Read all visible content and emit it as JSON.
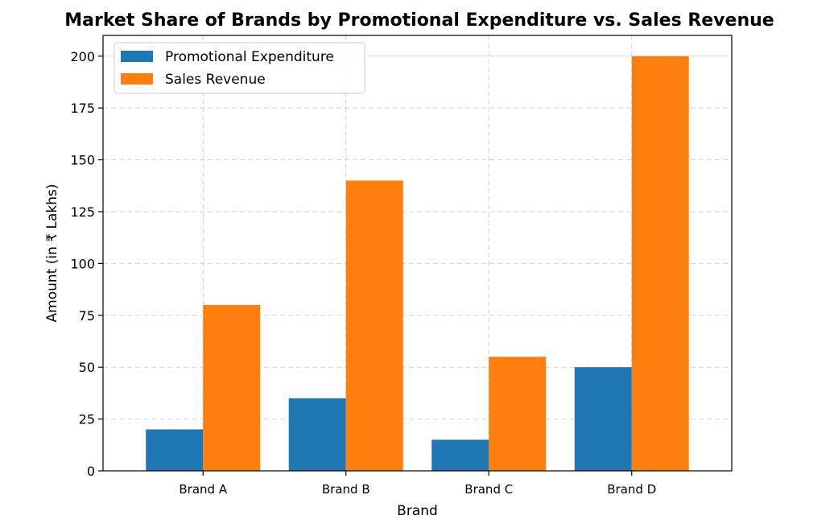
{
  "chart_data": {
    "type": "bar",
    "title": "Market Share of Brands by Promotional Expenditure vs. Sales Revenue",
    "xlabel": "Brand",
    "ylabel": "Amount (in ₹ Lakhs)",
    "categories": [
      "Brand A",
      "Brand B",
      "Brand C",
      "Brand D"
    ],
    "series": [
      {
        "name": "Promotional Expenditure",
        "values": [
          20,
          35,
          15,
          50
        ],
        "color": "#1f77b4"
      },
      {
        "name": "Sales Revenue",
        "values": [
          80,
          140,
          55,
          200
        ],
        "color": "#ff7f0e"
      }
    ],
    "ylim": [
      0,
      210
    ],
    "yticks": [
      0,
      25,
      50,
      75,
      100,
      125,
      150,
      175,
      200
    ],
    "grid": true,
    "legend_position": "top-left"
  }
}
